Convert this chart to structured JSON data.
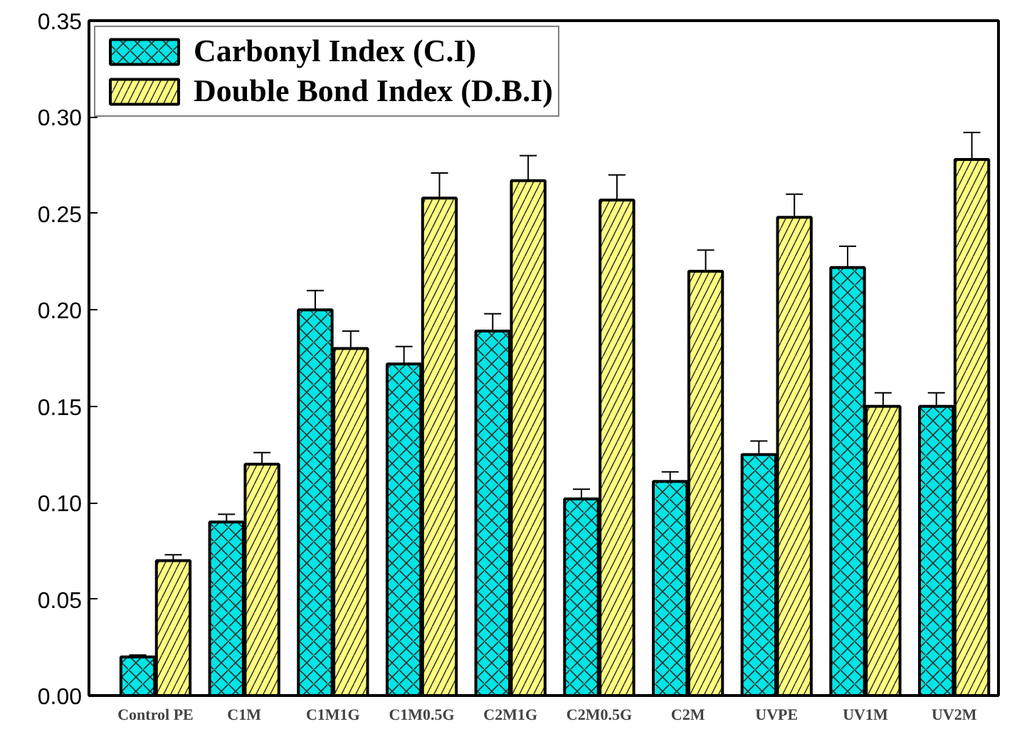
{
  "chart_data": {
    "type": "bar",
    "categories": [
      "Control PE",
      "C1M",
      "C1M1G",
      "C1M0.5G",
      "C2M1G",
      "C2M0.5G",
      "C2M",
      "UVPE",
      "UV1M",
      "UV2M"
    ],
    "series": [
      {
        "name": "Carbonyl Index (C.I)",
        "color": "#00e5e5",
        "values": [
          0.02,
          0.09,
          0.2,
          0.172,
          0.189,
          0.102,
          0.111,
          0.125,
          0.222,
          0.15
        ],
        "errors": [
          0.001,
          0.004,
          0.01,
          0.009,
          0.009,
          0.005,
          0.005,
          0.007,
          0.011,
          0.007
        ]
      },
      {
        "name": "Double Bond Index (D.B.I)",
        "color": "#ffff80",
        "values": [
          0.07,
          0.12,
          0.18,
          0.258,
          0.267,
          0.257,
          0.22,
          0.248,
          0.15,
          0.278
        ],
        "errors": [
          0.003,
          0.006,
          0.009,
          0.013,
          0.013,
          0.013,
          0.011,
          0.012,
          0.007,
          0.014
        ]
      }
    ],
    "ylim": [
      0,
      0.35
    ],
    "yticks": [
      {
        "value": 0,
        "label": "0.00"
      },
      0.05,
      {
        "value": 0.1,
        "label": "0.10"
      },
      0.15,
      {
        "value": 0.2,
        "label": "0.20"
      },
      0.25,
      {
        "value": 0.3,
        "label": "0.30"
      },
      0.35
    ],
    "grid": false,
    "legend": "top left"
  }
}
